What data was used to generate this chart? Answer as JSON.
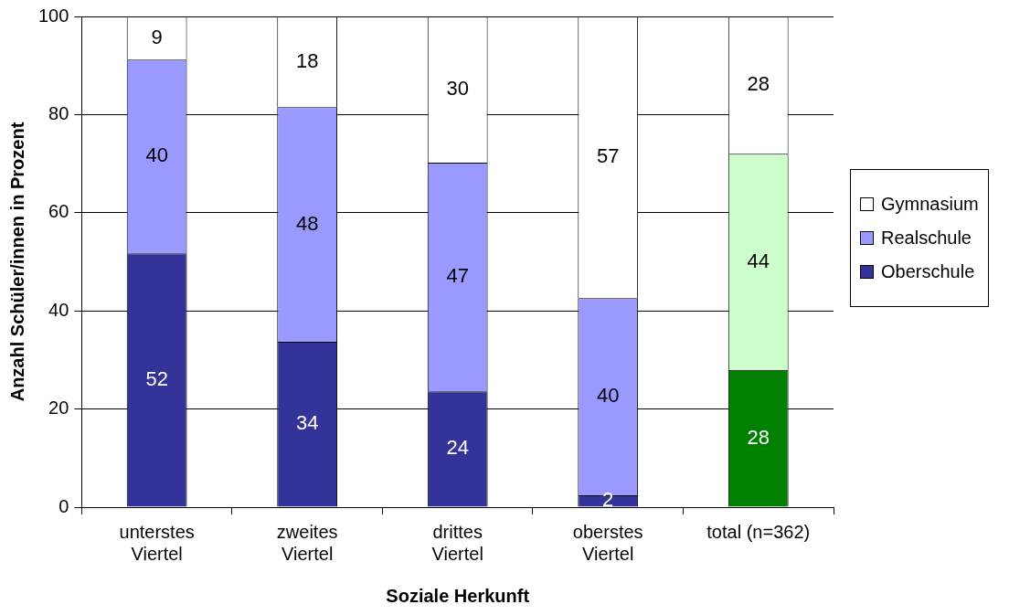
{
  "chart_data": {
    "type": "bar",
    "stacked": true,
    "xlabel": "Soziale Herkunft",
    "ylabel": "Anzahl Schüler/innen in Prozent",
    "categories": [
      "unterstes\nViertel",
      "zweites\nViertel",
      "drittes\nViertel",
      "oberstes\nViertel",
      "total (n=362)"
    ],
    "series": [
      {
        "name": "Oberschule",
        "color": "#333399",
        "colors": [
          "#333399",
          "#333399",
          "#333399",
          "#333399",
          "#008000"
        ],
        "values": [
          51.7,
          33.7,
          23.6,
          2.4,
          28
        ],
        "value_labels": [
          "52",
          "34",
          "24",
          "2",
          "28"
        ]
      },
      {
        "name": "Realschule",
        "color": "#9999ff",
        "colors": [
          "#9999ff",
          "#9999ff",
          "#9999ff",
          "#9999ff",
          "#ccffcc"
        ],
        "values": [
          39.5,
          47.8,
          46.6,
          40.2,
          44
        ],
        "value_labels": [
          "40",
          "48",
          "47",
          "40",
          "44"
        ]
      },
      {
        "name": "Gymnasium",
        "color": "#ffffff",
        "colors": [
          "#ffffff",
          "#ffffff",
          "#ffffff",
          "#ffffff",
          "#ffffff"
        ],
        "values": [
          8.8,
          18.5,
          29.8,
          57.4,
          28
        ],
        "value_labels": [
          "9",
          "18",
          "30",
          "57",
          "28"
        ]
      }
    ],
    "ylim": [
      0,
      100
    ],
    "yticks": [
      0,
      20,
      40,
      60,
      80,
      100
    ],
    "grid": "y",
    "legend": "right"
  }
}
